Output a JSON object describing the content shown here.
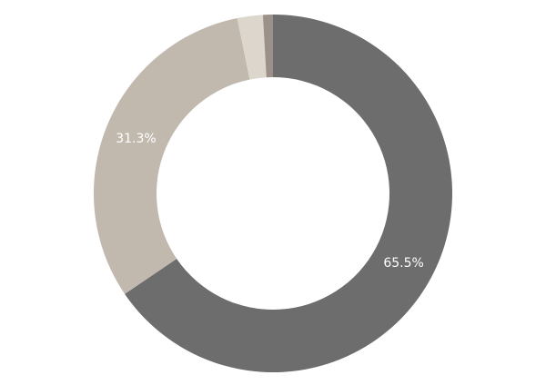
{
  "chart_data": {
    "type": "pie",
    "variant": "donut",
    "slices": [
      {
        "value": 65.5,
        "label": "65.5%",
        "color": "#6d6d6d"
      },
      {
        "value": 31.3,
        "label": "31.3%",
        "color": "#c1b8ae"
      },
      {
        "value": 2.3,
        "label": "",
        "color": "#dcd6cc"
      },
      {
        "value": 0.9,
        "label": "",
        "color": "#9b918a"
      }
    ],
    "start_angle": "top",
    "direction": "clockwise",
    "legend": "none"
  }
}
